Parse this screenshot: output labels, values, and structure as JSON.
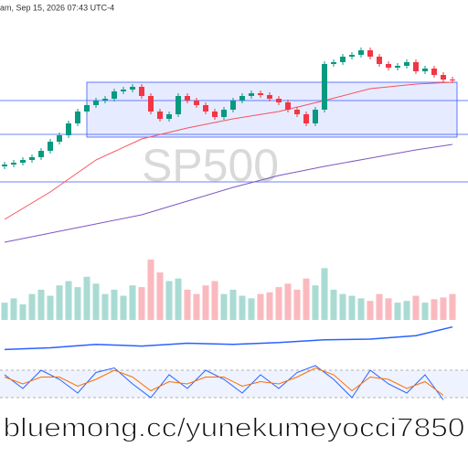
{
  "chart_data": {
    "type": "candlestick",
    "header": "am, Sep 15, 2026 07:43 UTC-4",
    "watermark": "SP500",
    "source_watermark": "bluemong.cc/yunekumeyocci7850",
    "ylim": [
      30,
      300
    ],
    "up_color": "#089981",
    "down_color": "#f23645",
    "open": [
      118,
      120,
      122,
      125,
      128,
      135,
      145,
      152,
      165,
      178,
      185,
      190,
      192,
      200,
      202,
      205,
      195,
      178,
      170,
      175,
      195,
      190,
      185,
      178,
      172,
      180,
      190,
      195,
      198,
      196,
      192,
      188,
      180,
      175,
      165,
      180,
      230,
      232,
      238,
      240,
      245,
      238,
      230,
      226,
      228,
      232,
      222,
      225,
      218,
      213
    ],
    "high": [
      123,
      125,
      128,
      131,
      138,
      148,
      155,
      168,
      181,
      188,
      193,
      195,
      203,
      205,
      208,
      208,
      198,
      181,
      178,
      198,
      198,
      193,
      188,
      181,
      183,
      193,
      198,
      201,
      201,
      199,
      195,
      191,
      183,
      178,
      183,
      233,
      235,
      241,
      243,
      248,
      248,
      241,
      233,
      231,
      235,
      235,
      228,
      228,
      221,
      216
    ],
    "low": [
      115,
      117,
      119,
      122,
      125,
      132,
      142,
      149,
      162,
      175,
      182,
      187,
      189,
      197,
      199,
      192,
      175,
      167,
      167,
      172,
      187,
      182,
      175,
      169,
      169,
      177,
      187,
      192,
      193,
      189,
      185,
      177,
      172,
      162,
      162,
      177,
      227,
      229,
      235,
      237,
      235,
      227,
      223,
      223,
      225,
      219,
      219,
      215,
      210,
      209
    ],
    "close": [
      120,
      122,
      125,
      128,
      135,
      145,
      152,
      165,
      178,
      185,
      190,
      192,
      200,
      202,
      205,
      195,
      178,
      170,
      175,
      195,
      190,
      185,
      178,
      172,
      180,
      190,
      195,
      198,
      196,
      192,
      188,
      180,
      175,
      165,
      180,
      230,
      232,
      238,
      240,
      245,
      238,
      230,
      226,
      228,
      232,
      222,
      225,
      218,
      213,
      212
    ],
    "moving_averages": [
      {
        "color": "#f7525f",
        "x": [
          0,
          5,
          10,
          15,
          20,
          25,
          30,
          35,
          40,
          45,
          49
        ],
        "values": [
          60,
          90,
          125,
          148,
          160,
          170,
          178,
          190,
          203,
          208,
          210
        ]
      },
      {
        "color": "#7e57c2",
        "x": [
          0,
          5,
          10,
          15,
          20,
          25,
          30,
          35,
          40,
          45,
          49
        ],
        "values": [
          35,
          45,
          55,
          65,
          80,
          95,
          108,
          118,
          127,
          136,
          142
        ]
      }
    ],
    "levels": [
      190,
      153,
      101
    ],
    "level_color": "#3d5afe",
    "box": {
      "x": [
        9,
        49.5
      ],
      "ylim": [
        150,
        210
      ],
      "color": "#3d5afe"
    },
    "volume": {
      "ylim": [
        0,
        90
      ],
      "values": [
        20,
        25,
        18,
        30,
        35,
        28,
        40,
        45,
        38,
        50,
        42,
        30,
        35,
        28,
        40,
        38,
        70,
        55,
        45,
        48,
        35,
        30,
        40,
        45,
        30,
        35,
        28,
        25,
        30,
        32,
        38,
        42,
        35,
        48,
        40,
        60,
        35,
        30,
        28,
        25,
        22,
        30,
        25,
        20,
        22,
        28,
        20,
        24,
        26,
        30
      ]
    },
    "rsi": {
      "ylim": [
        0,
        100
      ],
      "color": "#2962ff",
      "x": [
        0,
        5,
        10,
        15,
        20,
        25,
        30,
        35,
        40,
        45,
        49
      ],
      "values": [
        20,
        25,
        35,
        30,
        38,
        35,
        40,
        48,
        50,
        60,
        85
      ]
    },
    "stochastic": {
      "ylim": [
        0,
        100
      ],
      "band": [
        20,
        80
      ],
      "x": [
        0,
        2,
        4,
        6,
        8,
        10,
        12,
        14,
        16,
        18,
        20,
        22,
        24,
        26,
        28,
        30,
        32,
        34,
        36,
        38,
        40,
        42,
        44,
        46,
        48
      ],
      "series": [
        {
          "color": "#2962ff",
          "values": [
            70,
            40,
            80,
            60,
            30,
            75,
            85,
            50,
            20,
            70,
            40,
            80,
            60,
            30,
            70,
            40,
            75,
            90,
            60,
            20,
            80,
            50,
            30,
            70,
            15
          ]
        },
        {
          "color": "#ff6d00",
          "values": [
            65,
            50,
            65,
            65,
            45,
            60,
            80,
            65,
            35,
            55,
            50,
            65,
            65,
            45,
            55,
            50,
            65,
            85,
            70,
            35,
            65,
            60,
            40,
            55,
            25
          ]
        }
      ]
    }
  }
}
